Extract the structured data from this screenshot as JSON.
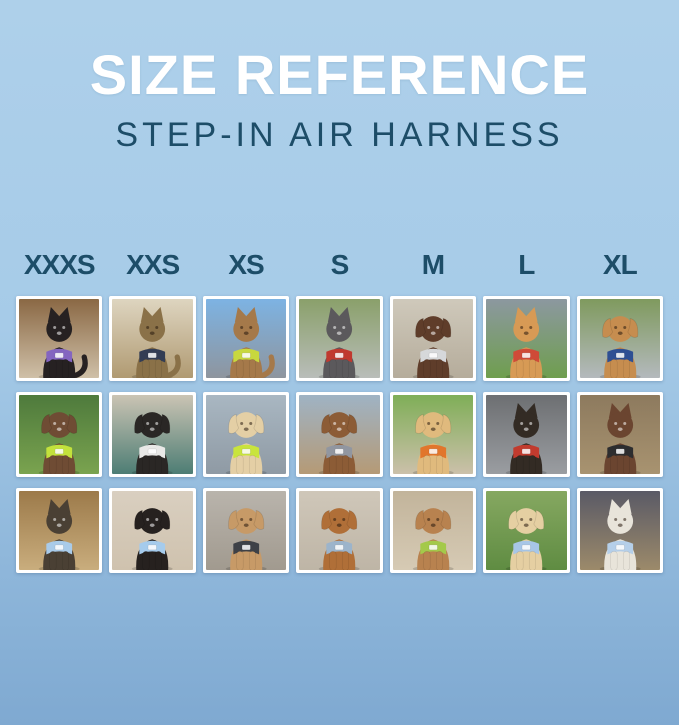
{
  "header": {
    "title": "SIZE REFERENCE",
    "subtitle": "STEP-IN AIR HARNESS"
  },
  "colors": {
    "bg_top": "#aed0ea",
    "bg_mid": "#a6cbe8",
    "bg_bottom": "#7fa9d1",
    "accent": "#1d4d68",
    "heading": "#ffffff",
    "frame": "#ffffff"
  },
  "sizes": [
    "XXXS",
    "XXS",
    "XS",
    "S",
    "M",
    "L",
    "XL"
  ],
  "photos": [
    {
      "size": "XXXS",
      "row": 1,
      "pet": "cat",
      "ears": "point",
      "desc": "Black kitten wearing a purple harness indoors",
      "fur": "#262122",
      "harness": "#8465c0",
      "scene": [
        "#8a6844",
        "#cfc0a8"
      ]
    },
    {
      "size": "XXS",
      "row": 1,
      "pet": "cat",
      "ears": "point",
      "desc": "Tabby cat in a dark navy harness by a window",
      "fur": "#8a7148",
      "harness": "#333d54",
      "scene": [
        "#ded5c0",
        "#b09a72"
      ]
    },
    {
      "size": "XS",
      "row": 1,
      "pet": "cat",
      "ears": "point",
      "desc": "Bengal cat in a neon green harness inside a car",
      "fur": "#a5794a",
      "harness": "#c8d83e",
      "scene": [
        "#7db3e3",
        "#8e959e"
      ]
    },
    {
      "size": "S",
      "row": 1,
      "pet": "dog",
      "ears": "point",
      "desc": "Grey French Bulldog in a red harness on a sidewalk",
      "fur": "#5b595c",
      "harness": "#c0392f",
      "scene": [
        "#8aa06a",
        "#b9bdb9"
      ]
    },
    {
      "size": "M",
      "row": 1,
      "pet": "dog",
      "ears": "floppy",
      "desc": "Chocolate spaniel puppy in a grey harness on pavement",
      "fur": "#5f3d2a",
      "harness": "#d6d8da",
      "scene": [
        "#cfc9bb",
        "#b5ac9b"
      ]
    },
    {
      "size": "L",
      "row": 1,
      "pet": "dog",
      "ears": "point",
      "desc": "Shiba Inu with a red ball, wearing a red harness on grass",
      "fur": "#d79a55",
      "harness": "#cf4b38",
      "scene": [
        "#8c98a0",
        "#6f9e4e"
      ]
    },
    {
      "size": "XL",
      "row": 1,
      "pet": "dog",
      "ears": "floppy",
      "desc": "Golden Retriever in a navy harness on a flower-lined path",
      "fur": "#c68d4f",
      "harness": "#2e4f93",
      "scene": [
        "#7f9a5e",
        "#b4b9bd"
      ]
    },
    {
      "size": "XXXS",
      "row": 2,
      "pet": "dog",
      "ears": "floppy",
      "desc": "Long-haired dachshund puppy in a neon green harness among greenery",
      "fur": "#6f4c34",
      "harness": "#c3e23c",
      "scene": [
        "#4e7a3c",
        "#7aa34f"
      ]
    },
    {
      "size": "XXS",
      "row": 2,
      "pet": "dog",
      "ears": "floppy",
      "desc": "Black pug puppy in a white harness on a teal blanket",
      "fur": "#2a2725",
      "harness": "#e9e9e7",
      "scene": [
        "#cbc4b4",
        "#4d7d74"
      ]
    },
    {
      "size": "XS",
      "row": 2,
      "pet": "dog",
      "ears": "floppy",
      "desc": "Cream long-haired dachshund in a neon green harness on a boat",
      "fur": "#e4cfa5",
      "harness": "#c9e43c",
      "scene": [
        "#a9b7c2",
        "#8f9aa4"
      ]
    },
    {
      "size": "S",
      "row": 2,
      "pet": "dog",
      "ears": "floppy",
      "desc": "Brown dachshund in a grey harness on a boardwalk",
      "fur": "#8c5c36",
      "harness": "#9196a0",
      "scene": [
        "#9fb3c4",
        "#b59a76"
      ]
    },
    {
      "size": "M",
      "row": 2,
      "pet": "dog",
      "ears": "floppy",
      "desc": "Golden Retriever puppy in an orange harness on a lawn",
      "fur": "#e0ba7d",
      "harness": "#e1762c",
      "scene": [
        "#7fae57",
        "#cbc0aa"
      ]
    },
    {
      "size": "L",
      "row": 2,
      "pet": "dog",
      "ears": "point",
      "desc": "Black-and-tan dog in a red harness inside a metal tunnel",
      "fur": "#332b24",
      "harness": "#c23b2e",
      "scene": [
        "#6d6f72",
        "#9a9da1"
      ]
    },
    {
      "size": "XL",
      "row": 2,
      "pet": "dog",
      "ears": "point",
      "desc": "Brown-and-white dog in a black harness on wooden steps",
      "fur": "#6b4530",
      "harness": "#2d2d2f",
      "scene": [
        "#8d7a5e",
        "#a89370"
      ]
    },
    {
      "size": "XXXS",
      "row": 3,
      "pet": "dog",
      "ears": "point",
      "desc": "Yorkshire Terrier puppy in a light blue harness on a sunny path",
      "fur": "#4a4034",
      "harness": "#a9cbe9",
      "scene": [
        "#9c7a4a",
        "#c9ad7d"
      ]
    },
    {
      "size": "XXS",
      "row": 3,
      "pet": "dog",
      "ears": "floppy",
      "desc": "Black-and-tan dachshund in a light blue harness on a sofa",
      "fur": "#26211f",
      "harness": "#a5cbec",
      "scene": [
        "#d9cfc0",
        "#cfc2ae"
      ]
    },
    {
      "size": "XS",
      "row": 3,
      "pet": "dog",
      "ears": "floppy",
      "desc": "Apricot poodle puppy in a charcoal harness on a deck",
      "fur": "#c79a67",
      "harness": "#3e4147",
      "scene": [
        "#b9b4ac",
        "#a19a8f"
      ]
    },
    {
      "size": "S",
      "row": 3,
      "pet": "dog",
      "ears": "floppy",
      "desc": "Red dachshund in a light blue harness on pavement",
      "fur": "#b06f38",
      "harness": "#9cb4cb",
      "scene": [
        "#cfc7b9",
        "#beb5a6"
      ]
    },
    {
      "size": "M",
      "row": 3,
      "pet": "dog",
      "ears": "floppy",
      "desc": "Apricot doodle in a green harness on a sidewalk",
      "fur": "#b8824f",
      "harness": "#a4c94a",
      "scene": [
        "#c2b49b",
        "#d6cab4"
      ]
    },
    {
      "size": "L",
      "row": 3,
      "pet": "dog",
      "ears": "floppy",
      "desc": "Cream Golden Retriever puppy in a light blue harness on grass",
      "fur": "#e5cfa2",
      "harness": "#a7c6e7",
      "scene": [
        "#86a861",
        "#5f8c42"
      ]
    },
    {
      "size": "XL",
      "row": 3,
      "pet": "dog",
      "ears": "point",
      "desc": "White dog in a light blue harness on a city street at night",
      "fur": "#e8e4da",
      "harness": "#b5cfe9",
      "scene": [
        "#5a5a66",
        "#9c8a6a"
      ]
    }
  ]
}
